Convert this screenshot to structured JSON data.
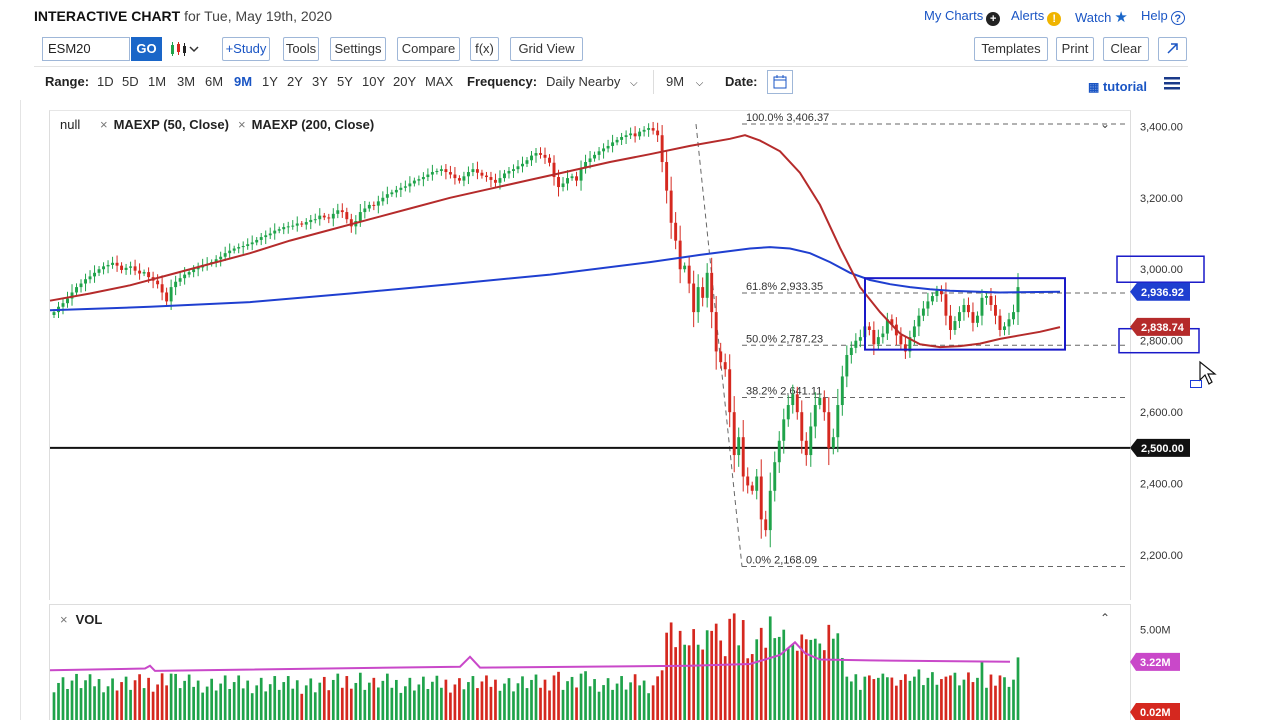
{
  "header": {
    "title": "INTERACTIVE CHART",
    "subtitle": "for Tue, May 19th, 2020",
    "my_charts": "My Charts",
    "alerts": "Alerts",
    "watch": "Watch",
    "help": "Help"
  },
  "toolbar": {
    "symbol_value": "ESM20",
    "go": "GO",
    "study": "+Study",
    "tools": "Tools",
    "settings": "Settings",
    "compare": "Compare",
    "fx": "f(x)",
    "grid_view": "Grid View",
    "templates": "Templates",
    "print": "Print",
    "clear": "Clear"
  },
  "rangebar": {
    "range_label": "Range:",
    "ranges": [
      "1D",
      "5D",
      "1M",
      "3M",
      "6M",
      "9M",
      "1Y",
      "2Y",
      "3Y",
      "5Y",
      "10Y",
      "20Y",
      "MAX"
    ],
    "active_range": "9M",
    "frequency_label": "Frequency:",
    "frequency_value": "Daily Nearby",
    "period_value": "9M",
    "date_label": "Date:",
    "tutorial": "tutorial"
  },
  "legend": {
    "main": "null",
    "study1": "MAEXP (50, Close)",
    "study2": "MAEXP (200, Close)",
    "volume": "VOL"
  },
  "colors": {
    "up": "#1fa34a",
    "down": "#d5281f",
    "ma50": "#b52b2b",
    "ma200": "#1f3fd0",
    "accent": "#1a55c4",
    "vol_ma": "#c948c9",
    "box": "#1919c8"
  },
  "chart_data": {
    "type": "candlestick",
    "symbol": "ESM20",
    "y_range": [
      2080,
      3440
    ],
    "y_ticks": [
      "3,400.00",
      "3,200.00",
      "3,000.00",
      "2,800.00",
      "2,600.00",
      "2,400.00",
      "2,200.00"
    ],
    "y_tick_values": [
      3400,
      3200,
      3000,
      2800,
      2600,
      2400,
      2200
    ],
    "price_badges": [
      {
        "label": "2,936.92",
        "value": 2936.92,
        "color": "#1f3fd0"
      },
      {
        "label": "2,838.74",
        "value": 2838.74,
        "color": "#b52b2b"
      },
      {
        "label": "2,500.00",
        "value": 2500,
        "color": "#111111"
      }
    ],
    "horizontal_line": {
      "value": 2500
    },
    "fibonacci": [
      {
        "label": "100.0% 3,406.37",
        "value": 3406.37
      },
      {
        "label": "61.8% 2,933.35",
        "value": 2933.35
      },
      {
        "label": "50.0% 2,787.23",
        "value": 2787.23
      },
      {
        "label": "38.2% 2,641.11",
        "value": 2641.11
      },
      {
        "label": "0.0% 2,168.09",
        "value": 2168.09
      }
    ],
    "closes": [
      2880,
      2895,
      2905,
      2918,
      2935,
      2950,
      2960,
      2972,
      2980,
      2990,
      3000,
      3008,
      3012,
      3018,
      3010,
      2998,
      3004,
      3008,
      2996,
      2988,
      2992,
      2978,
      2968,
      2958,
      2935,
      2910,
      2950,
      2965,
      2975,
      2985,
      2992,
      3000,
      3005,
      3012,
      3015,
      3020,
      3028,
      3035,
      3045,
      3052,
      3058,
      3062,
      3065,
      3070,
      3075,
      3082,
      3090,
      3095,
      3100,
      3108,
      3112,
      3118,
      3120,
      3122,
      3128,
      3125,
      3132,
      3138,
      3140,
      3150,
      3145,
      3142,
      3155,
      3165,
      3160,
      3140,
      3120,
      3135,
      3160,
      3170,
      3180,
      3178,
      3190,
      3200,
      3210,
      3215,
      3222,
      3228,
      3232,
      3240,
      3248,
      3252,
      3258,
      3265,
      3272,
      3275,
      3280,
      3272,
      3265,
      3255,
      3248,
      3260,
      3272,
      3280,
      3270,
      3262,
      3258,
      3250,
      3242,
      3255,
      3268,
      3275,
      3280,
      3288,
      3295,
      3305,
      3318,
      3325,
      3320,
      3312,
      3298,
      3258,
      3230,
      3240,
      3255,
      3260,
      3248,
      3282,
      3300,
      3310,
      3320,
      3330,
      3338,
      3345,
      3355,
      3362,
      3370,
      3375,
      3380,
      3372,
      3385,
      3390,
      3395,
      3388,
      3375,
      3300,
      3220,
      3130,
      3080,
      3000,
      3010,
      2960,
      2880,
      2950,
      2920,
      2990,
      2880,
      2770,
      2740,
      2720,
      2600,
      2480,
      2530,
      2420,
      2395,
      2380,
      2420,
      2300,
      2270,
      2380,
      2460,
      2520,
      2580,
      2620,
      2650,
      2600,
      2520,
      2480,
      2560,
      2620,
      2640,
      2600,
      2500,
      2530,
      2620,
      2700,
      2760,
      2780,
      2800,
      2810,
      2840,
      2830,
      2790,
      2810,
      2820,
      2860,
      2845,
      2815,
      2790,
      2770,
      2810,
      2840,
      2870,
      2890,
      2910,
      2925,
      2940,
      2930,
      2870,
      2830,
      2855,
      2880,
      2900,
      2880,
      2850,
      2870,
      2920,
      2925,
      2900,
      2870,
      2830,
      2840,
      2860,
      2880,
      2950
    ],
    "ma50_points": [
      [
        0,
        2912
      ],
      [
        40,
        2932
      ],
      [
        80,
        2955
      ],
      [
        120,
        2985
      ],
      [
        160,
        3015
      ],
      [
        200,
        3045
      ],
      [
        240,
        3080
      ],
      [
        280,
        3110
      ],
      [
        320,
        3140
      ],
      [
        360,
        3170
      ],
      [
        400,
        3200
      ],
      [
        440,
        3225
      ],
      [
        480,
        3250
      ],
      [
        520,
        3275
      ],
      [
        560,
        3300
      ],
      [
        600,
        3322
      ],
      [
        640,
        3345
      ],
      [
        680,
        3365
      ],
      [
        695,
        3375
      ],
      [
        710,
        3360
      ],
      [
        730,
        3330
      ],
      [
        750,
        3270
      ],
      [
        770,
        3180
      ],
      [
        790,
        3060
      ],
      [
        810,
        2950
      ],
      [
        830,
        2880
      ],
      [
        850,
        2820
      ],
      [
        870,
        2790
      ],
      [
        890,
        2782
      ],
      [
        910,
        2785
      ],
      [
        930,
        2792
      ],
      [
        950,
        2805
      ],
      [
        970,
        2815
      ],
      [
        990,
        2825
      ],
      [
        1010,
        2838
      ]
    ],
    "ma200_points": [
      [
        0,
        2885
      ],
      [
        100,
        2895
      ],
      [
        200,
        2908
      ],
      [
        300,
        2932
      ],
      [
        400,
        2958
      ],
      [
        500,
        2985
      ],
      [
        600,
        3020
      ],
      [
        650,
        3040
      ],
      [
        700,
        3058
      ],
      [
        720,
        3062
      ],
      [
        740,
        3058
      ],
      [
        760,
        3045
      ],
      [
        780,
        3020
      ],
      [
        800,
        2990
      ],
      [
        820,
        2970
      ],
      [
        840,
        2958
      ],
      [
        860,
        2950
      ],
      [
        880,
        2944
      ],
      [
        900,
        2940
      ],
      [
        950,
        2935
      ],
      [
        1010,
        2937
      ]
    ],
    "rectangles": [
      {
        "x0": 865,
        "x1": 1065,
        "top": 2975,
        "bottom": 2775
      },
      {
        "label_box": "3,000.00"
      },
      {
        "label_box": "2,800.00"
      }
    ],
    "volume": {
      "ticks": [
        "5.00M"
      ],
      "badges": [
        {
          "label": "3.22M",
          "value": 3.22,
          "color": "#c948c9"
        },
        {
          "label": "0.02M",
          "value": 0.02,
          "color": "#d5281f"
        }
      ],
      "y_range": [
        0,
        6.2
      ],
      "ma_level": 3.22
    }
  }
}
